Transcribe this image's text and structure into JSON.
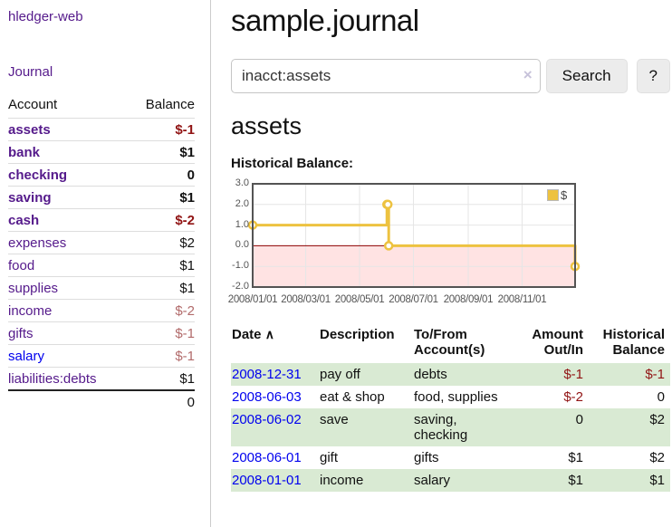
{
  "app_title": "hledger-web",
  "sidebar": {
    "journal_link": "Journal",
    "accounts": {
      "col_account": "Account",
      "col_balance": "Balance",
      "rows": [
        {
          "name": "assets",
          "balance": "$-1"
        },
        {
          "name": "bank",
          "balance": "$1"
        },
        {
          "name": "checking",
          "balance": "0"
        },
        {
          "name": "saving",
          "balance": "$1"
        },
        {
          "name": "cash",
          "balance": "$-2"
        },
        {
          "name": "expenses",
          "balance": "$2"
        },
        {
          "name": "food",
          "balance": "$1"
        },
        {
          "name": "supplies",
          "balance": "$1"
        },
        {
          "name": "income",
          "balance": "$-2"
        },
        {
          "name": "gifts",
          "balance": "$-1"
        },
        {
          "name": "salary",
          "balance": "$-1"
        },
        {
          "name": "liabilities:debts",
          "balance": "$1"
        }
      ],
      "total": "0"
    }
  },
  "main": {
    "title": "sample.journal",
    "search": {
      "value": "inacct:assets",
      "clear_icon": "×",
      "search_button": "Search",
      "help_button": "?"
    },
    "account_title": "assets",
    "chart_title": "Historical Balance:"
  },
  "chart_data": {
    "type": "line",
    "step": true,
    "title": "Historical Balance:",
    "xlim": [
      "2008-01-01",
      "2008-12-31"
    ],
    "ylim": [
      -2,
      3
    ],
    "grid": true,
    "legend_position": "top-right",
    "legend": [
      {
        "label": "$",
        "color": "#edc240"
      }
    ],
    "series_color": "#edc240",
    "zero_line_color": "#8b0000",
    "negative_region_color": "rgba(255,0,0,0.11)",
    "y_ticks": [
      {
        "v": 3,
        "label": "3.0"
      },
      {
        "v": 2,
        "label": "2.0"
      },
      {
        "v": 1,
        "label": "1.0"
      },
      {
        "v": 0,
        "label": "0.0"
      },
      {
        "v": -1,
        "label": "-1.0"
      },
      {
        "v": -2,
        "label": "-2.0"
      }
    ],
    "x_ticks": [
      {
        "date": "2008-01-01",
        "label": "2008/01/01"
      },
      {
        "date": "2008-03-01",
        "label": "2008/03/01"
      },
      {
        "date": "2008-05-01",
        "label": "2008/05/01"
      },
      {
        "date": "2008-07-01",
        "label": "2008/07/01"
      },
      {
        "date": "2008-09-01",
        "label": "2008/09/01"
      },
      {
        "date": "2008-11-01",
        "label": "2008/11/01"
      }
    ],
    "points": [
      {
        "date": "2008-01-01",
        "value": 1
      },
      {
        "date": "2008-06-01",
        "value": 2
      },
      {
        "date": "2008-06-02",
        "value": 2
      },
      {
        "date": "2008-06-03",
        "value": 0
      },
      {
        "date": "2008-12-31",
        "value": -1
      }
    ]
  },
  "register": {
    "sort_icon": "∧",
    "headers": {
      "date": "Date",
      "description": "Description",
      "tofrom": "To/From\nAccount(s)",
      "amount": "Amount\nOut/In",
      "balance": "Historical\nBalance"
    },
    "rows": [
      {
        "date": "2008-12-31",
        "description": "pay off",
        "accounts": "debts",
        "amount": "$-1",
        "balance": "$-1"
      },
      {
        "date": "2008-06-03",
        "description": "eat & shop",
        "accounts": "food, supplies",
        "amount": "$-2",
        "balance": "0"
      },
      {
        "date": "2008-06-02",
        "description": "save",
        "accounts": "saving,\nchecking",
        "amount": "0",
        "balance": "$2"
      },
      {
        "date": "2008-06-01",
        "description": "gift",
        "accounts": "gifts",
        "amount": "$1",
        "balance": "$2"
      },
      {
        "date": "2008-01-01",
        "description": "income",
        "accounts": "salary",
        "amount": "$1",
        "balance": "$1"
      }
    ]
  }
}
